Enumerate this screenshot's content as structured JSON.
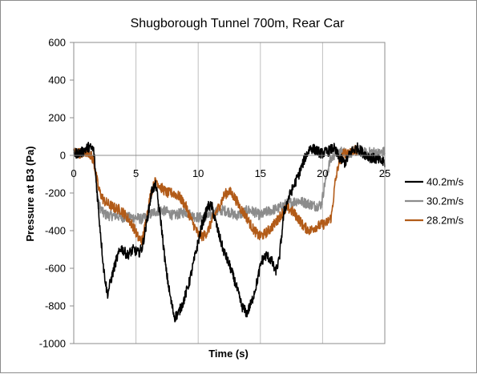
{
  "chart_data": {
    "type": "line",
    "title": "Shugborough Tunnel 700m, Rear Car",
    "xlabel": "Time (s)",
    "ylabel": "Pressure at B3 (Pa)",
    "xlim": [
      0,
      25
    ],
    "ylim": [
      -1000,
      600
    ],
    "xticks": [
      0,
      5,
      10,
      15,
      20,
      25
    ],
    "yticks": [
      600,
      400,
      200,
      0,
      -200,
      -400,
      -600,
      -800,
      -1000
    ],
    "grid": "vertical",
    "legend_position": "right",
    "series": [
      {
        "name": "40.2m/s",
        "color": "#000000",
        "points": [
          [
            0,
            10
          ],
          [
            0.6,
            15
          ],
          [
            1.2,
            45
          ],
          [
            1.6,
            30
          ],
          [
            2.0,
            -300
          ],
          [
            2.4,
            -600
          ],
          [
            2.7,
            -740
          ],
          [
            3.0,
            -660
          ],
          [
            3.4,
            -560
          ],
          [
            3.8,
            -490
          ],
          [
            4.3,
            -530
          ],
          [
            4.8,
            -500
          ],
          [
            5.2,
            -520
          ],
          [
            5.5,
            -490
          ],
          [
            5.8,
            -380
          ],
          [
            6.3,
            -180
          ],
          [
            6.6,
            -160
          ],
          [
            7.0,
            -350
          ],
          [
            7.4,
            -600
          ],
          [
            7.8,
            -770
          ],
          [
            8.1,
            -860
          ],
          [
            8.4,
            -840
          ],
          [
            8.8,
            -780
          ],
          [
            9.3,
            -670
          ],
          [
            9.8,
            -520
          ],
          [
            10.3,
            -370
          ],
          [
            10.8,
            -270
          ],
          [
            11.1,
            -270
          ],
          [
            11.5,
            -380
          ],
          [
            12.0,
            -500
          ],
          [
            12.5,
            -580
          ],
          [
            13.0,
            -680
          ],
          [
            13.5,
            -800
          ],
          [
            13.9,
            -840
          ],
          [
            14.3,
            -780
          ],
          [
            14.7,
            -680
          ],
          [
            15.1,
            -560
          ],
          [
            15.5,
            -530
          ],
          [
            15.9,
            -560
          ],
          [
            16.2,
            -620
          ],
          [
            16.5,
            -560
          ],
          [
            16.9,
            -300
          ],
          [
            17.3,
            -220
          ],
          [
            17.7,
            -160
          ],
          [
            18.1,
            -100
          ],
          [
            18.6,
            -10
          ],
          [
            19.0,
            40
          ],
          [
            19.4,
            30
          ],
          [
            19.9,
            10
          ],
          [
            20.4,
            20
          ],
          [
            20.9,
            40
          ],
          [
            21.3,
            -10
          ],
          [
            21.8,
            -40
          ],
          [
            22.3,
            20
          ],
          [
            22.8,
            40
          ],
          [
            23.3,
            10
          ],
          [
            23.8,
            -10
          ],
          [
            24.3,
            -20
          ],
          [
            25,
            -40
          ]
        ]
      },
      {
        "name": "30.2m/s",
        "color": "#8c8c8c",
        "points": [
          [
            0,
            10
          ],
          [
            0.6,
            10
          ],
          [
            1.2,
            20
          ],
          [
            1.6,
            -20
          ],
          [
            2.0,
            -260
          ],
          [
            2.4,
            -310
          ],
          [
            2.8,
            -320
          ],
          [
            3.4,
            -320
          ],
          [
            4.0,
            -330
          ],
          [
            4.6,
            -330
          ],
          [
            5.0,
            -330
          ],
          [
            5.5,
            -340
          ],
          [
            6.0,
            -320
          ],
          [
            6.5,
            -300
          ],
          [
            7.0,
            -290
          ],
          [
            7.5,
            -300
          ],
          [
            8.0,
            -320
          ],
          [
            8.5,
            -310
          ],
          [
            9.0,
            -300
          ],
          [
            9.5,
            -320
          ],
          [
            10.0,
            -330
          ],
          [
            10.5,
            -330
          ],
          [
            11.0,
            -320
          ],
          [
            11.5,
            -300
          ],
          [
            12.0,
            -290
          ],
          [
            12.5,
            -300
          ],
          [
            13.0,
            -320
          ],
          [
            13.5,
            -310
          ],
          [
            14.0,
            -290
          ],
          [
            14.5,
            -300
          ],
          [
            15.0,
            -320
          ],
          [
            15.5,
            -300
          ],
          [
            16.0,
            -290
          ],
          [
            16.5,
            -280
          ],
          [
            17.0,
            -260
          ],
          [
            17.5,
            -250
          ],
          [
            18.0,
            -240
          ],
          [
            18.5,
            -250
          ],
          [
            19.0,
            -260
          ],
          [
            19.5,
            -270
          ],
          [
            19.9,
            -260
          ],
          [
            20.2,
            -140
          ],
          [
            20.6,
            -30
          ],
          [
            21.0,
            10
          ],
          [
            21.5,
            20
          ],
          [
            22.0,
            10
          ],
          [
            22.5,
            20
          ],
          [
            23.0,
            30
          ],
          [
            23.5,
            10
          ],
          [
            24.0,
            20
          ],
          [
            24.5,
            10
          ],
          [
            25,
            20
          ]
        ]
      },
      {
        "name": "28.2m/s",
        "color": "#b25b18",
        "points": [
          [
            0,
            20
          ],
          [
            0.6,
            10
          ],
          [
            1.2,
            20
          ],
          [
            1.6,
            -30
          ],
          [
            2.0,
            -180
          ],
          [
            2.4,
            -240
          ],
          [
            2.8,
            -260
          ],
          [
            3.3,
            -280
          ],
          [
            3.8,
            -290
          ],
          [
            4.3,
            -330
          ],
          [
            4.8,
            -380
          ],
          [
            5.2,
            -440
          ],
          [
            5.5,
            -450
          ],
          [
            5.8,
            -350
          ],
          [
            6.2,
            -200
          ],
          [
            6.6,
            -130
          ],
          [
            7.0,
            -170
          ],
          [
            7.5,
            -200
          ],
          [
            8.0,
            -200
          ],
          [
            8.5,
            -220
          ],
          [
            9.0,
            -270
          ],
          [
            9.5,
            -350
          ],
          [
            10.0,
            -420
          ],
          [
            10.4,
            -430
          ],
          [
            10.8,
            -400
          ],
          [
            11.2,
            -330
          ],
          [
            11.7,
            -270
          ],
          [
            12.1,
            -210
          ],
          [
            12.5,
            -190
          ],
          [
            12.9,
            -220
          ],
          [
            13.4,
            -280
          ],
          [
            13.9,
            -330
          ],
          [
            14.4,
            -390
          ],
          [
            14.9,
            -430
          ],
          [
            15.3,
            -420
          ],
          [
            15.8,
            -390
          ],
          [
            16.3,
            -350
          ],
          [
            16.8,
            -300
          ],
          [
            17.2,
            -280
          ],
          [
            17.6,
            -300
          ],
          [
            18.0,
            -330
          ],
          [
            18.5,
            -380
          ],
          [
            19.0,
            -400
          ],
          [
            19.4,
            -380
          ],
          [
            19.9,
            -370
          ],
          [
            20.3,
            -360
          ],
          [
            20.7,
            -330
          ],
          [
            21.0,
            -150
          ],
          [
            21.3,
            -40
          ],
          [
            21.7,
            10
          ],
          [
            22.1,
            20
          ],
          [
            22.5,
            30
          ],
          [
            22.8,
            20
          ]
        ]
      }
    ]
  }
}
